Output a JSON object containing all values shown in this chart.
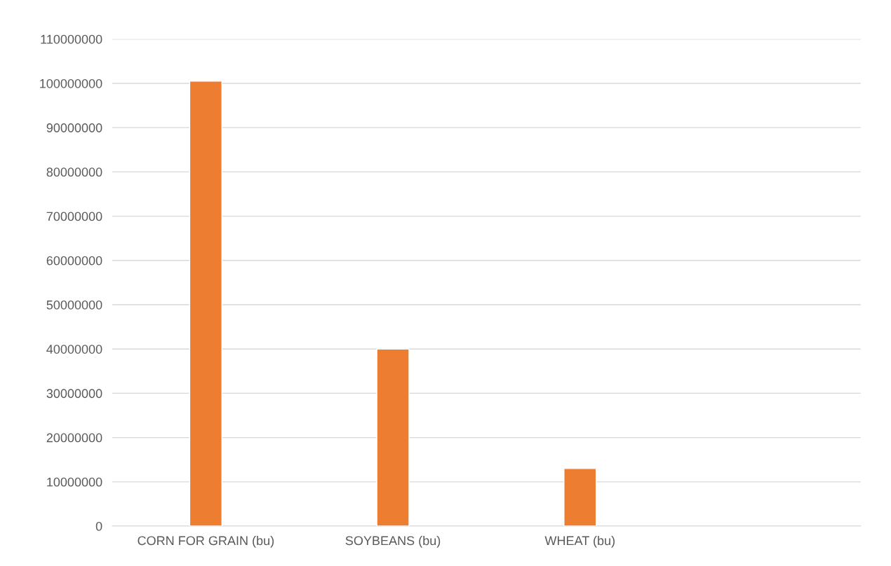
{
  "chart_data": {
    "type": "bar",
    "categories": [
      "CORN FOR GRAIN (bu)",
      "SOYBEANS (bu)",
      "WHEAT (bu)",
      null
    ],
    "values": [
      100500000,
      40000000,
      13000000,
      null
    ],
    "color": "#ed7d31",
    "ylim": [
      0,
      110000000
    ],
    "yticks": [
      0,
      10000000,
      20000000,
      30000000,
      40000000,
      50000000,
      60000000,
      70000000,
      80000000,
      90000000,
      100000000,
      110000000
    ],
    "grid": "y",
    "legend": false
  }
}
